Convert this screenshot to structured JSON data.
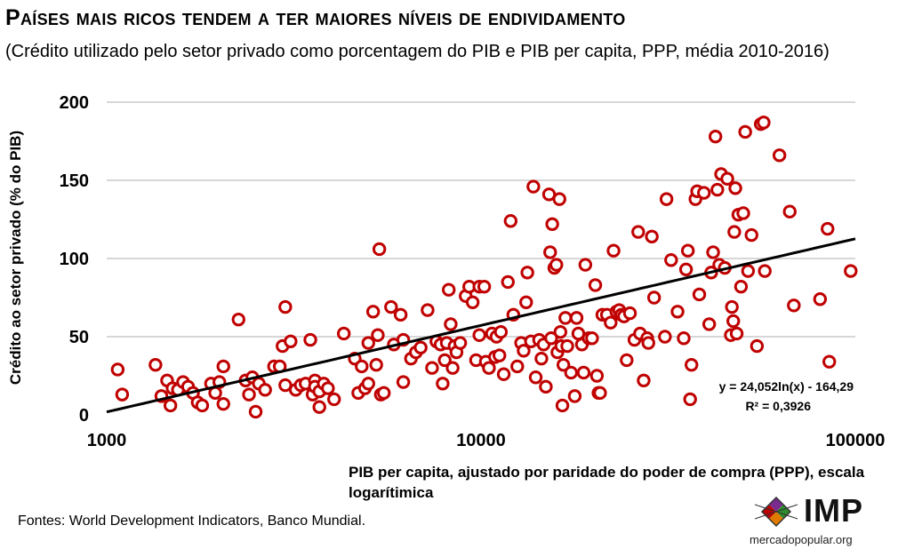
{
  "header": {
    "title": "Países mais ricos tendem a ter maiores níveis de endividamento",
    "subtitle": "(Crédito utilizado pelo setor privado como porcentagem do PIB e PIB per capita, PPP, média 2010-2016)"
  },
  "footer": {
    "source": "Fontes: World Development Indicators, Banco Mundial.",
    "logo_text": "IMP",
    "logo_url": "mercadopopular.org"
  },
  "colors": {
    "marker": "#c00000",
    "trend": "#000000",
    "grid": "#bfbfbf"
  },
  "chart_data": {
    "type": "scatter",
    "title": "Países mais ricos tendem a ter maiores níveis de endividamento",
    "xlabel": "PIB per capita, ajustado por paridade do poder de compra (PPP), escala logarítimica",
    "ylabel": "Crédito ao setor privado (% do PIB)",
    "xscale": "log",
    "xlim": [
      1000,
      100000
    ],
    "ylim": [
      0,
      200
    ],
    "xticks": [
      "1000",
      "10000",
      "100000"
    ],
    "yticks": [
      "0",
      "50",
      "100",
      "150",
      "200"
    ],
    "grid": "horizontal",
    "trendline": {
      "type": "logarithmic",
      "equation": "y = 24,052ln(x) - 164,29",
      "r2": "R² = 0,3926",
      "a": 24.052,
      "b": -164.29
    },
    "points": [
      [
        1070,
        29
      ],
      [
        1100,
        13
      ],
      [
        1350,
        32
      ],
      [
        1400,
        12
      ],
      [
        1450,
        22
      ],
      [
        1480,
        6
      ],
      [
        1500,
        17
      ],
      [
        1550,
        16
      ],
      [
        1600,
        21
      ],
      [
        1650,
        18
      ],
      [
        1700,
        14
      ],
      [
        1750,
        8
      ],
      [
        1800,
        6
      ],
      [
        1900,
        20
      ],
      [
        1950,
        14
      ],
      [
        2000,
        21
      ],
      [
        2050,
        7
      ],
      [
        2050,
        31
      ],
      [
        2250,
        61
      ],
      [
        2350,
        22
      ],
      [
        2400,
        13
      ],
      [
        2450,
        24
      ],
      [
        2500,
        2
      ],
      [
        2550,
        20
      ],
      [
        2650,
        16
      ],
      [
        2800,
        31
      ],
      [
        2900,
        31
      ],
      [
        2950,
        44
      ],
      [
        3000,
        69
      ],
      [
        3000,
        19
      ],
      [
        3100,
        47
      ],
      [
        3200,
        16
      ],
      [
        3300,
        19
      ],
      [
        3400,
        20
      ],
      [
        3500,
        48
      ],
      [
        3550,
        13
      ],
      [
        3600,
        22
      ],
      [
        3600,
        18
      ],
      [
        3700,
        5
      ],
      [
        3700,
        15
      ],
      [
        3800,
        20
      ],
      [
        3900,
        17
      ],
      [
        4050,
        10
      ],
      [
        4300,
        52
      ],
      [
        4600,
        36
      ],
      [
        4700,
        14
      ],
      [
        4800,
        31
      ],
      [
        4900,
        17
      ],
      [
        5000,
        20
      ],
      [
        5000,
        46
      ],
      [
        5150,
        66
      ],
      [
        5250,
        32
      ],
      [
        5300,
        51
      ],
      [
        5350,
        106
      ],
      [
        5400,
        13
      ],
      [
        5500,
        14
      ],
      [
        5750,
        69
      ],
      [
        5850,
        45
      ],
      [
        6100,
        64
      ],
      [
        6200,
        48
      ],
      [
        6200,
        21
      ],
      [
        6500,
        36
      ],
      [
        6700,
        40
      ],
      [
        6900,
        43
      ],
      [
        7200,
        67
      ],
      [
        7400,
        30
      ],
      [
        7600,
        47
      ],
      [
        7800,
        45
      ],
      [
        7900,
        20
      ],
      [
        8000,
        35
      ],
      [
        8100,
        46
      ],
      [
        8200,
        80
      ],
      [
        8300,
        58
      ],
      [
        8400,
        30
      ],
      [
        8500,
        44
      ],
      [
        8600,
        40
      ],
      [
        8800,
        46
      ],
      [
        9100,
        76
      ],
      [
        9300,
        82
      ],
      [
        9500,
        72
      ],
      [
        9700,
        35
      ],
      [
        9900,
        82
      ],
      [
        9900,
        51
      ],
      [
        10200,
        82
      ],
      [
        10300,
        34
      ],
      [
        10500,
        30
      ],
      [
        10700,
        52
      ],
      [
        10900,
        37
      ],
      [
        11000,
        50
      ],
      [
        11200,
        38
      ],
      [
        11300,
        53
      ],
      [
        11500,
        26
      ],
      [
        11800,
        85
      ],
      [
        12000,
        124
      ],
      [
        12200,
        64
      ],
      [
        12500,
        31
      ],
      [
        12800,
        46
      ],
      [
        13000,
        41
      ],
      [
        13200,
        72
      ],
      [
        13300,
        91
      ],
      [
        13600,
        47
      ],
      [
        13800,
        146
      ],
      [
        14000,
        24
      ],
      [
        14300,
        48
      ],
      [
        14500,
        36
      ],
      [
        14700,
        45
      ],
      [
        14900,
        18
      ],
      [
        15200,
        141
      ],
      [
        15300,
        104
      ],
      [
        15400,
        49
      ],
      [
        15500,
        122
      ],
      [
        15700,
        94
      ],
      [
        15900,
        96
      ],
      [
        16000,
        40
      ],
      [
        16200,
        138
      ],
      [
        16300,
        53
      ],
      [
        16400,
        44
      ],
      [
        16500,
        6
      ],
      [
        16600,
        32
      ],
      [
        16800,
        62
      ],
      [
        17000,
        44
      ],
      [
        17400,
        27
      ],
      [
        17800,
        12
      ],
      [
        18000,
        62
      ],
      [
        18200,
        52
      ],
      [
        18600,
        45
      ],
      [
        18800,
        27
      ],
      [
        19000,
        96
      ],
      [
        19400,
        49
      ],
      [
        19800,
        49
      ],
      [
        20200,
        83
      ],
      [
        20400,
        25
      ],
      [
        20600,
        14
      ],
      [
        20800,
        14
      ],
      [
        21100,
        64
      ],
      [
        21700,
        64
      ],
      [
        22200,
        59
      ],
      [
        22600,
        105
      ],
      [
        23000,
        66
      ],
      [
        23400,
        67
      ],
      [
        23700,
        64
      ],
      [
        24100,
        63
      ],
      [
        24500,
        35
      ],
      [
        25000,
        65
      ],
      [
        25700,
        48
      ],
      [
        26300,
        117
      ],
      [
        26600,
        52
      ],
      [
        27200,
        22
      ],
      [
        27800,
        49
      ],
      [
        28000,
        46
      ],
      [
        28600,
        114
      ],
      [
        29000,
        75
      ],
      [
        31000,
        50
      ],
      [
        31300,
        138
      ],
      [
        32200,
        99
      ],
      [
        33500,
        66
      ],
      [
        34800,
        49
      ],
      [
        35300,
        93
      ],
      [
        35700,
        105
      ],
      [
        36200,
        10
      ],
      [
        36500,
        32
      ],
      [
        37400,
        138
      ],
      [
        37800,
        143
      ],
      [
        38300,
        77
      ],
      [
        39400,
        142
      ],
      [
        40700,
        58
      ],
      [
        41200,
        91
      ],
      [
        41700,
        104
      ],
      [
        42300,
        178
      ],
      [
        42800,
        144
      ],
      [
        43300,
        96
      ],
      [
        43800,
        154
      ],
      [
        44800,
        94
      ],
      [
        45500,
        151
      ],
      [
        46500,
        51
      ],
      [
        46800,
        69
      ],
      [
        47200,
        60
      ],
      [
        47500,
        117
      ],
      [
        47800,
        145
      ],
      [
        48200,
        52
      ],
      [
        48700,
        128
      ],
      [
        49500,
        82
      ],
      [
        50200,
        129
      ],
      [
        50800,
        181
      ],
      [
        51700,
        92
      ],
      [
        52800,
        115
      ],
      [
        54600,
        44
      ],
      [
        55900,
        186
      ],
      [
        56900,
        187
      ],
      [
        57300,
        92
      ],
      [
        62700,
        166
      ],
      [
        66800,
        130
      ],
      [
        68500,
        70
      ],
      [
        80500,
        74
      ],
      [
        84300,
        119
      ],
      [
        85200,
        34
      ],
      [
        97200,
        92
      ]
    ]
  }
}
